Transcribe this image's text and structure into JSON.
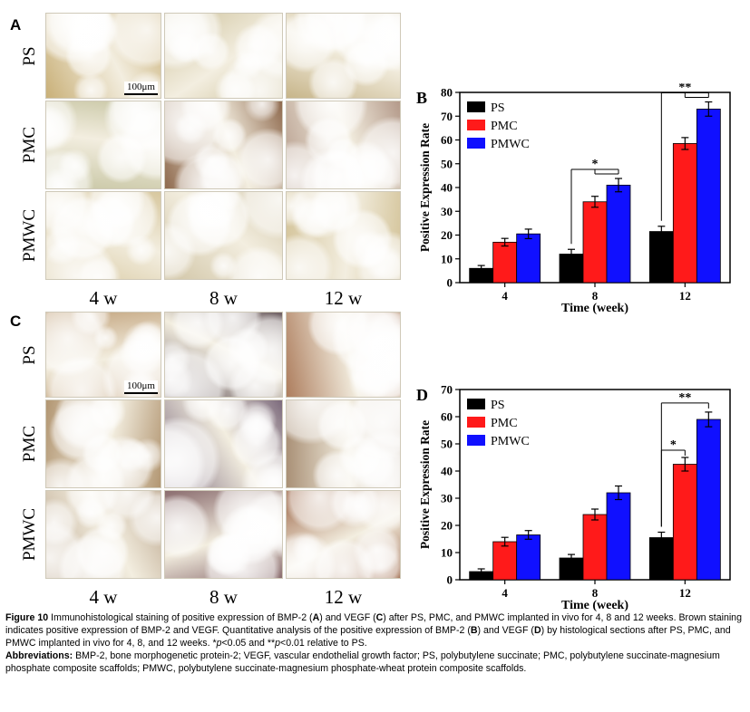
{
  "panels": {
    "A": {
      "letter": "A",
      "rows": [
        "PS",
        "PMC",
        "PMWC"
      ],
      "cols": [
        "4 w",
        "8 w",
        "12 w"
      ],
      "scalebar": "100μm",
      "tones": [
        [
          "#c9b078",
          "#cdc19a",
          "#c7b58a"
        ],
        [
          "#c8c6a4",
          "#8f6a4e",
          "#b49a8a"
        ],
        [
          "#d7c79e",
          "#d1c5a6",
          "#d4c49a"
        ]
      ]
    },
    "C": {
      "letter": "C",
      "rows": [
        "PS",
        "PMC",
        "PMWC"
      ],
      "cols": [
        "4 w",
        "8 w",
        "12 w"
      ],
      "scalebar": "100μm",
      "tones": [
        [
          "#c2a37c",
          "#6e5f63",
          "#ad7d5d"
        ],
        [
          "#b29672",
          "#7c6a7c",
          "#a99076"
        ],
        [
          "#bca78e",
          "#8b6d6f",
          "#9c6647"
        ]
      ]
    }
  },
  "chart_data": [
    {
      "panel": "B",
      "type": "bar",
      "ylabel": "Positive Expression Rate",
      "xlabel": "Time (week)",
      "categories": [
        "4",
        "8",
        "12"
      ],
      "ylim": [
        0,
        80
      ],
      "yticks": [
        0,
        10,
        20,
        30,
        40,
        50,
        60,
        70,
        80
      ],
      "legend_position": "top-left",
      "series": [
        {
          "name": "PS",
          "color": "#000000",
          "values": [
            6,
            12,
            21.5
          ],
          "errors": [
            1.2,
            2,
            2.2
          ]
        },
        {
          "name": "PMC",
          "color": "#ff1a1a",
          "values": [
            17,
            34,
            58.5
          ],
          "errors": [
            1.6,
            2.3,
            2.5
          ]
        },
        {
          "name": "PMWC",
          "color": "#1010ff",
          "values": [
            20.5,
            41,
            73
          ],
          "errors": [
            2,
            2.8,
            3
          ]
        }
      ],
      "annotations": [
        {
          "category": "8",
          "from_series": 0,
          "to_series": [
            1,
            2
          ],
          "label": "*"
        },
        {
          "category": "12",
          "from_series": 0,
          "to_series": [
            1,
            2
          ],
          "label": "**"
        }
      ]
    },
    {
      "panel": "D",
      "type": "bar",
      "ylabel": "Positive Expression Rate",
      "xlabel": "Time (week)",
      "categories": [
        "4",
        "8",
        "12"
      ],
      "ylim": [
        0,
        70
      ],
      "yticks": [
        0,
        10,
        20,
        30,
        40,
        50,
        60,
        70
      ],
      "legend_position": "top-left",
      "series": [
        {
          "name": "PS",
          "color": "#000000",
          "values": [
            3,
            8,
            15.5
          ],
          "errors": [
            1,
            1.3,
            2
          ]
        },
        {
          "name": "PMC",
          "color": "#ff1a1a",
          "values": [
            14,
            24,
            42.5
          ],
          "errors": [
            1.6,
            2,
            2.5
          ]
        },
        {
          "name": "PMWC",
          "color": "#1010ff",
          "values": [
            16.5,
            32,
            59
          ],
          "errors": [
            1.6,
            2.5,
            2.7
          ]
        }
      ],
      "annotations": [
        {
          "category": "12",
          "from_series": 0,
          "to_series": [
            1
          ],
          "label": "*"
        },
        {
          "category": "12",
          "from_series": 0,
          "to_series": [
            2
          ],
          "label": "**"
        }
      ]
    }
  ],
  "caption": {
    "fig_label": "Figure 10",
    "fig_t1": " Immunohistological staining of positive expression of BMP-2 (",
    "fig_b1": "A",
    "fig_t2": ") and VEGF (",
    "fig_b2": "C",
    "fig_t3": ") after PS, PMC, and PMWC implanted in vivo for 4, 8 and 12 weeks. Brown staining indicates positive expression of BMP-2 and VEGF. Quantitative analysis of the positive expression of BMP-2 (",
    "fig_b3": "B",
    "fig_t4": ") and VEGF (",
    "fig_b4": "D",
    "fig_t5": ") by histological sections after PS, PMC, and PMWC implanted in vivo for 4, 8, and 12 weeks. *",
    "fig_i1": "p",
    "fig_t6": "<0.05 and **",
    "fig_i2": "p",
    "fig_t7": "<0.01 relative to PS.",
    "abbr_label": "Abbreviations:",
    "abbr_text": " BMP-2, bone morphogenetic protein-2; VEGF, vascular endothelial growth factor; PS, polybutylene succinate; PMC, polybutylene succinate-magnesium phosphate composite scaffolds; PMWC, polybutylene succinate-magnesium phosphate-wheat protein composite scaffolds."
  }
}
